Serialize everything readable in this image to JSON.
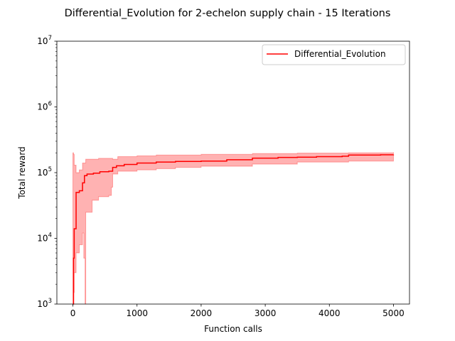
{
  "chart_data": {
    "type": "line",
    "title": "Differential_Evolution for 2-echelon supply chain - 15 Iterations",
    "xlabel": "Function calls",
    "ylabel": "Total reward",
    "xlim": [
      -250,
      5250
    ],
    "ylim": [
      1000,
      10000000
    ],
    "yscale": "log",
    "x_ticks": [
      0,
      1000,
      2000,
      3000,
      4000,
      5000
    ],
    "x_tick_labels": [
      "0",
      "1000",
      "2000",
      "3000",
      "4000",
      "5000"
    ],
    "y_ticks": [
      1000,
      10000,
      100000,
      1000000,
      10000000
    ],
    "y_tick_labels": [
      {
        "base": "10",
        "exp": "3"
      },
      {
        "base": "10",
        "exp": "4"
      },
      {
        "base": "10",
        "exp": "5"
      },
      {
        "base": "10",
        "exp": "6"
      },
      {
        "base": "10",
        "exp": "7"
      }
    ],
    "grid": false,
    "legend_position": "top-right",
    "series": [
      {
        "name": "Differential_Evolution",
        "color": "#ff0000",
        "band_color": "#ff0000",
        "band_opacity": 0.3,
        "mean": [
          [
            0,
            1000
          ],
          [
            10,
            5000
          ],
          [
            20,
            14000
          ],
          [
            40,
            14000
          ],
          [
            50,
            50000
          ],
          [
            100,
            53000
          ],
          [
            130,
            53000
          ],
          [
            150,
            70000
          ],
          [
            180,
            90000
          ],
          [
            220,
            95000
          ],
          [
            320,
            98000
          ],
          [
            420,
            103000
          ],
          [
            560,
            105000
          ],
          [
            620,
            120000
          ],
          [
            680,
            127000
          ],
          [
            800,
            133000
          ],
          [
            1000,
            140000
          ],
          [
            1300,
            145000
          ],
          [
            1600,
            148000
          ],
          [
            2000,
            150000
          ],
          [
            2400,
            157000
          ],
          [
            2800,
            166000
          ],
          [
            3200,
            170000
          ],
          [
            3500,
            172000
          ],
          [
            3800,
            175000
          ],
          [
            4200,
            178000
          ],
          [
            4300,
            185000
          ],
          [
            4800,
            187000
          ],
          [
            5000,
            188000
          ]
        ],
        "upper": [
          [
            0,
            200000
          ],
          [
            10,
            190000
          ],
          [
            20,
            130000
          ],
          [
            50,
            100000
          ],
          [
            100,
            110000
          ],
          [
            150,
            140000
          ],
          [
            200,
            160000
          ],
          [
            400,
            165000
          ],
          [
            560,
            165000
          ],
          [
            620,
            160000
          ],
          [
            700,
            175000
          ],
          [
            1000,
            180000
          ],
          [
            1300,
            185000
          ],
          [
            2000,
            190000
          ],
          [
            2800,
            195000
          ],
          [
            3500,
            198000
          ],
          [
            4300,
            200000
          ],
          [
            5000,
            205000
          ]
        ],
        "lower": [
          [
            0,
            1000
          ],
          [
            10,
            1500
          ],
          [
            20,
            3000
          ],
          [
            50,
            6000
          ],
          [
            100,
            8000
          ],
          [
            150,
            12000
          ],
          [
            170,
            5000
          ],
          [
            190,
            1000
          ],
          [
            200,
            25000
          ],
          [
            300,
            38000
          ],
          [
            400,
            43000
          ],
          [
            560,
            45000
          ],
          [
            600,
            60000
          ],
          [
            620,
            95000
          ],
          [
            700,
            105000
          ],
          [
            1000,
            110000
          ],
          [
            1300,
            115000
          ],
          [
            1600,
            120000
          ],
          [
            2000,
            125000
          ],
          [
            2800,
            135000
          ],
          [
            3500,
            145000
          ],
          [
            4300,
            150000
          ],
          [
            5000,
            165000
          ]
        ]
      }
    ]
  }
}
